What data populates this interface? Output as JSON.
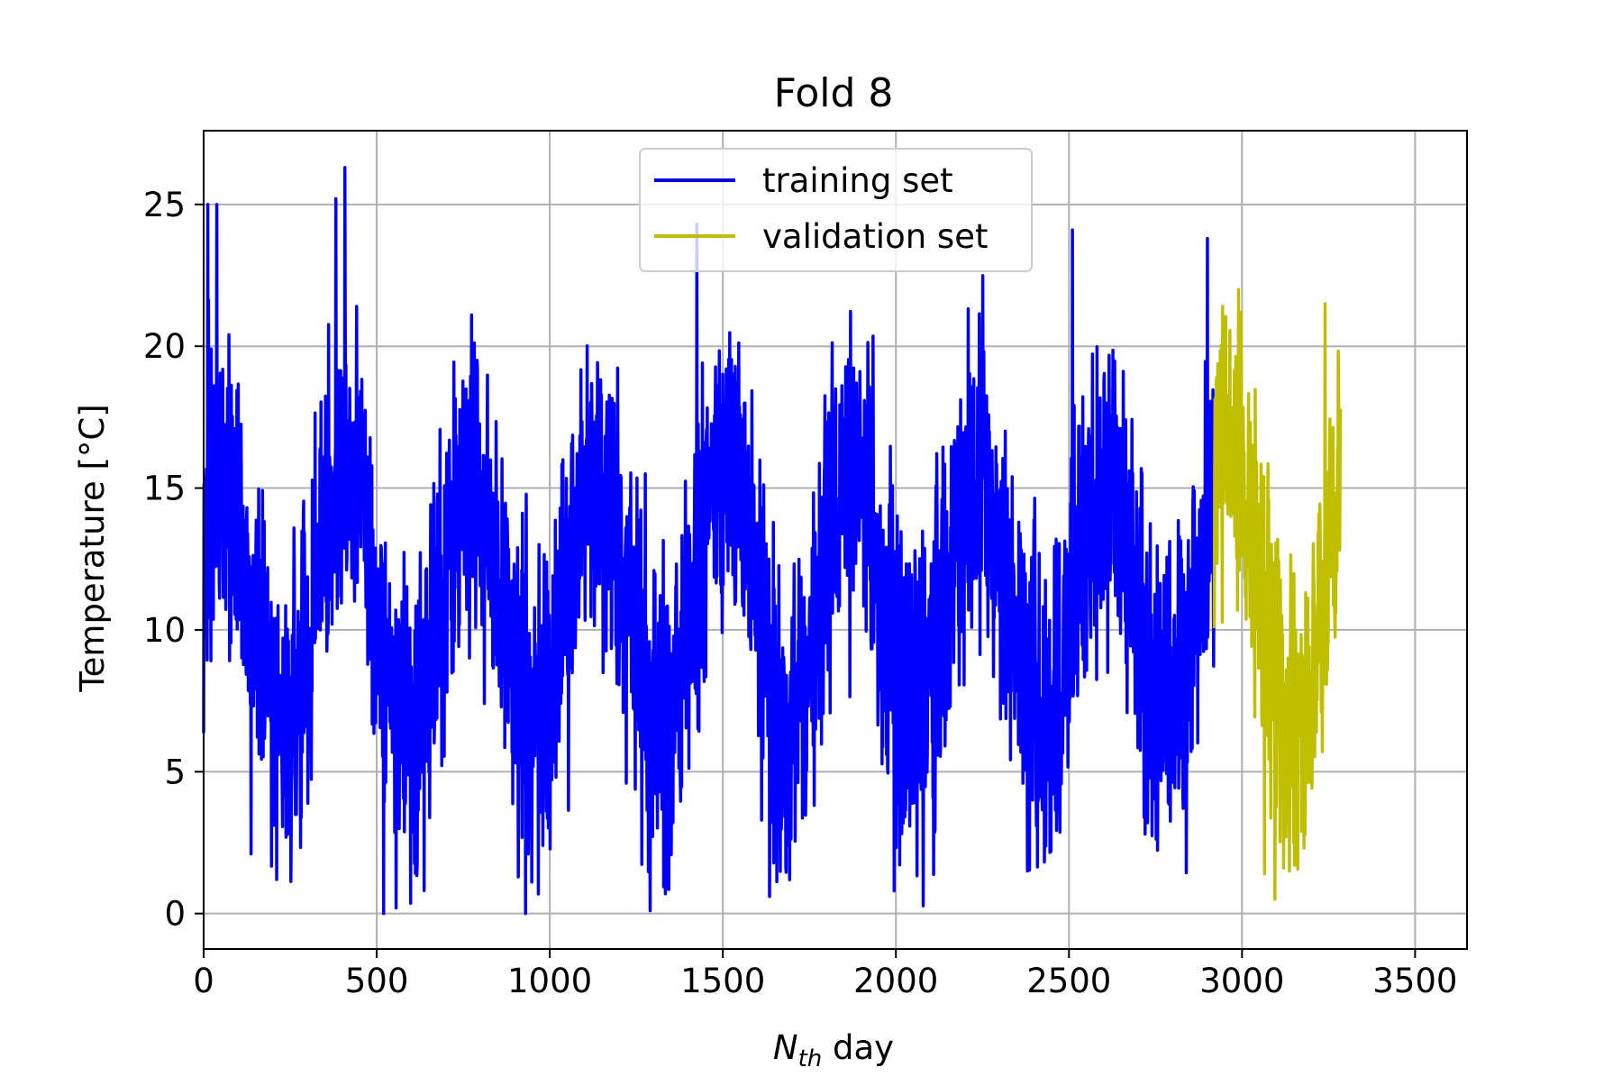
{
  "chart_data": {
    "type": "line",
    "title": "Fold 8",
    "xlabel": {
      "main": "N",
      "subscript": "th",
      "rest": " day"
    },
    "ylabel": "Temperature [°C]",
    "xlim": [
      0,
      3650
    ],
    "ylim": [
      -1.25,
      27.6
    ],
    "x_ticks": [
      0,
      500,
      1000,
      1500,
      2000,
      2500,
      3000,
      3500
    ],
    "y_ticks": [
      0,
      5,
      10,
      15,
      20,
      25
    ],
    "x_tick_labels": [
      "0",
      "500",
      "1000",
      "1500",
      "2000",
      "2500",
      "3000",
      "3500"
    ],
    "y_tick_labels": [
      "0",
      "5",
      "10",
      "15",
      "20",
      "25"
    ],
    "grid": true,
    "legend": {
      "placement": "upper center"
    },
    "series": [
      {
        "name": "training set",
        "color": "#0000ff",
        "x_range": [
          0,
          2919
        ],
        "mean_temp": 11.0,
        "seasonal_amplitude": 4.3,
        "period_days": 365.25,
        "peak_day": 45,
        "noise_amplitude": 5.5,
        "extremes": [
          {
            "x": 12,
            "y": 25.0
          },
          {
            "x": 38,
            "y": 25.0
          },
          {
            "x": 137,
            "y": 2.1
          },
          {
            "x": 382,
            "y": 25.2
          },
          {
            "x": 408,
            "y": 26.3
          },
          {
            "x": 520,
            "y": 0.0
          },
          {
            "x": 556,
            "y": 0.2
          },
          {
            "x": 930,
            "y": 0.0
          },
          {
            "x": 1290,
            "y": 0.1
          },
          {
            "x": 1425,
            "y": 24.3
          },
          {
            "x": 1635,
            "y": 0.6
          },
          {
            "x": 1995,
            "y": 0.8
          },
          {
            "x": 2380,
            "y": 1.5
          },
          {
            "x": 2510,
            "y": 24.1
          },
          {
            "x": 2720,
            "y": 2.8
          },
          {
            "x": 2900,
            "y": 23.8
          }
        ]
      },
      {
        "name": "validation set",
        "color": "#bfbf00",
        "x_range": [
          2920,
          3284
        ],
        "mean_temp": 11.5,
        "seasonal_amplitude": 5.0,
        "period_days": 365.25,
        "peak_day": 45,
        "noise_amplitude": 5.0,
        "extremes": [
          {
            "x": 2990,
            "y": 22.0
          },
          {
            "x": 3065,
            "y": 1.4
          },
          {
            "x": 3095,
            "y": 0.5
          },
          {
            "x": 3120,
            "y": 1.6
          },
          {
            "x": 3240,
            "y": 21.5
          }
        ]
      }
    ]
  }
}
